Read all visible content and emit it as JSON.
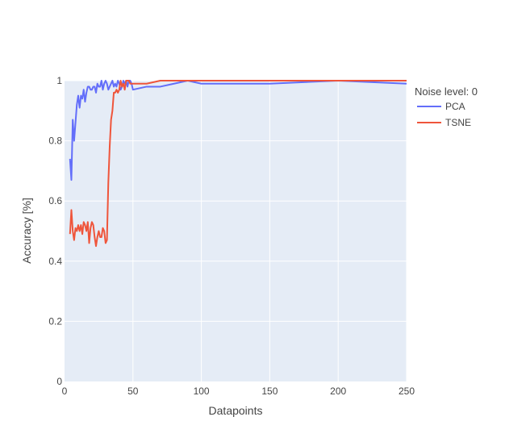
{
  "chart_data": {
    "type": "line",
    "xlabel": "Datapoints",
    "ylabel": "Accuracy [%]",
    "xlim": [
      0,
      250
    ],
    "ylim": [
      0,
      1
    ],
    "x_ticks": [
      0,
      50,
      100,
      150,
      200,
      250
    ],
    "y_ticks": [
      0,
      0.2,
      0.4,
      0.6,
      0.8,
      1
    ],
    "y_tick_labels": [
      "0",
      "0.2",
      "0.4",
      "0.6",
      "0.8",
      "1"
    ],
    "grid": true,
    "legend": {
      "title": "Noise level: 0",
      "position": "right"
    },
    "series": [
      {
        "name": "PCA",
        "color": "#636efa",
        "x": [
          4,
          5,
          6,
          7,
          8,
          9,
          10,
          11,
          12,
          13,
          14,
          15,
          16,
          17,
          18,
          19,
          20,
          21,
          22,
          23,
          24,
          25,
          26,
          27,
          28,
          29,
          30,
          31,
          32,
          33,
          34,
          35,
          36,
          37,
          38,
          39,
          40,
          41,
          42,
          43,
          44,
          45,
          46,
          47,
          48,
          49,
          50,
          60,
          70,
          80,
          90,
          100,
          150,
          200,
          250
        ],
        "y": [
          0.74,
          0.67,
          0.87,
          0.8,
          0.86,
          0.92,
          0.95,
          0.91,
          0.95,
          0.94,
          0.97,
          0.93,
          0.96,
          0.98,
          0.98,
          0.97,
          0.97,
          0.98,
          0.98,
          0.96,
          0.99,
          0.98,
          0.98,
          1.0,
          0.97,
          0.99,
          1.0,
          0.99,
          0.97,
          0.98,
          0.99,
          1.0,
          0.98,
          0.99,
          0.98,
          1.0,
          0.99,
          0.97,
          0.98,
          1.0,
          0.99,
          1.0,
          0.98,
          1.0,
          1.0,
          0.99,
          0.97,
          0.98,
          0.98,
          0.99,
          1.0,
          0.99,
          0.99,
          1.0,
          0.99
        ]
      },
      {
        "name": "TSNE",
        "color": "#ef553b",
        "x": [
          4,
          5,
          6,
          7,
          8,
          9,
          10,
          11,
          12,
          13,
          14,
          15,
          16,
          17,
          18,
          19,
          20,
          21,
          22,
          23,
          24,
          25,
          26,
          27,
          28,
          29,
          30,
          31,
          32,
          33,
          34,
          35,
          36,
          37,
          38,
          39,
          40,
          41,
          42,
          43,
          44,
          45,
          46,
          47,
          48,
          49,
          50,
          60,
          70,
          80,
          90,
          100,
          150,
          200,
          250
        ],
        "y": [
          0.49,
          0.57,
          0.5,
          0.47,
          0.51,
          0.5,
          0.52,
          0.5,
          0.52,
          0.49,
          0.53,
          0.52,
          0.5,
          0.53,
          0.46,
          0.51,
          0.53,
          0.52,
          0.48,
          0.45,
          0.48,
          0.5,
          0.48,
          0.48,
          0.51,
          0.5,
          0.46,
          0.47,
          0.66,
          0.78,
          0.87,
          0.9,
          0.96,
          0.96,
          0.97,
          0.96,
          0.97,
          1.0,
          0.98,
          0.99,
          0.97,
          1.0,
          1.0,
          1.0,
          0.99,
          0.99,
          0.99,
          0.99,
          1.0,
          1.0,
          1.0,
          1.0,
          1.0,
          1.0,
          1.0
        ]
      }
    ]
  }
}
